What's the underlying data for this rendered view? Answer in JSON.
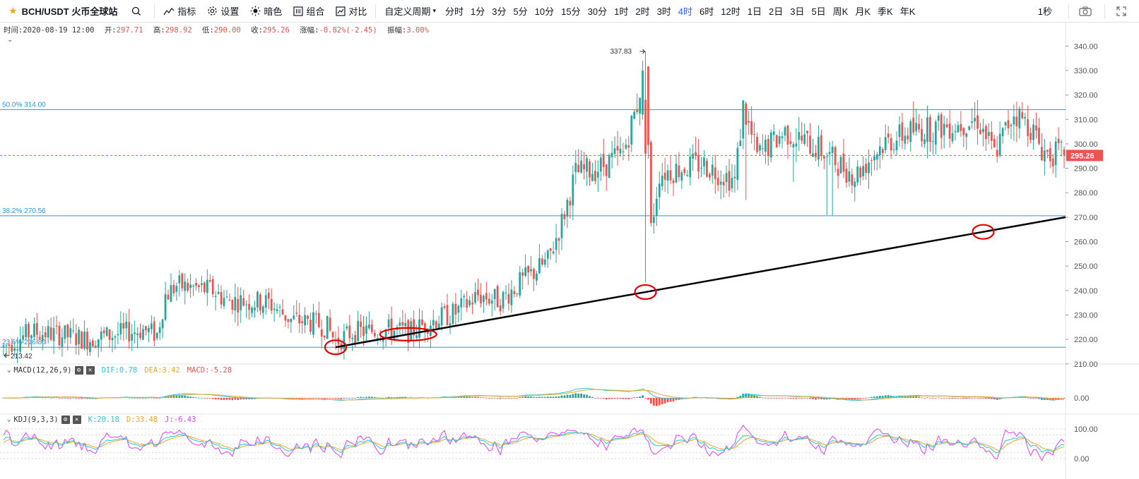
{
  "toolbar": {
    "symbol": "BCH/USDT 火币全球站",
    "buttons": [
      {
        "name": "indicators-button",
        "label": "指标"
      },
      {
        "name": "settings-button",
        "label": "设置"
      },
      {
        "name": "dark-mode-button",
        "label": "暗色"
      },
      {
        "name": "combine-button",
        "label": "组合"
      },
      {
        "name": "compare-button",
        "label": "对比"
      }
    ],
    "custom_period": "自定义周期",
    "intervals": [
      "分时",
      "1分",
      "3分",
      "5分",
      "10分",
      "15分",
      "30分",
      "1时",
      "2时",
      "3时",
      "4时",
      "6时",
      "12时",
      "1日",
      "2日",
      "3日",
      "5日",
      "周K",
      "月K",
      "季K",
      "年K"
    ],
    "active_interval": "4时",
    "seconds_label": "1秒"
  },
  "ohlc": {
    "time_label": "时间:",
    "time": "2020-08-19 12:00",
    "open_label": "开:",
    "open": "297.71",
    "high_label": "高:",
    "high": "298.92",
    "low_label": "低:",
    "low": "290.00",
    "close_label": "收:",
    "close": "295.26",
    "change_label": "涨幅:",
    "change": "-0.82%(-2.45)",
    "amplitude_label": "振幅:",
    "amplitude": "3.00%"
  },
  "macd": {
    "title": "MACD(12,26,9)",
    "dif_label": "DIF:",
    "dif": "0.78",
    "dea_label": "DEA:",
    "dea": "3.42",
    "macd_label": "MACD:",
    "macd": "-5.28"
  },
  "kdj": {
    "title": "KDJ(9,3,3)",
    "k_label": "K:",
    "k": "20.18",
    "d_label": "D:",
    "d": "33.48",
    "j_label": "J:",
    "j": "-6.43"
  },
  "colors": {
    "up": "#26a69a",
    "down": "#ef5350",
    "fib": "#2196f3",
    "trend": "#000000",
    "circle": "#e00000",
    "dif": "#26c6da",
    "dea": "#f5a623",
    "k": "#26c6da",
    "d": "#f5a623",
    "j": "#e040fb",
    "active": "#2962ff"
  },
  "chart_data": {
    "type": "candlestick",
    "price_axis": {
      "min": 205,
      "max": 345,
      "ticks": [
        210,
        220,
        230,
        240,
        250,
        260,
        270,
        280,
        290,
        300,
        310,
        320,
        330,
        340
      ],
      "tick_labels": [
        "210.00",
        "220.00",
        "230.00",
        "240.00",
        "250.00",
        "260.00",
        "270.00",
        "280.00",
        "290.00",
        "300.00",
        "310.00",
        "320.00",
        "330.00",
        "340.00"
      ]
    },
    "last_price": "295.26",
    "last_price_value": 295.26,
    "high_marker": "337.83",
    "high_value": 337.83,
    "low_marker": "213.42",
    "low_value": 213.42,
    "fib_levels": [
      {
        "label": "50.0% 314.00",
        "value": 314.0
      },
      {
        "label": "38.2% 270.56",
        "value": 270.56
      },
      {
        "label": "23.6% 216.80",
        "value": 216.8
      }
    ],
    "trendline": {
      "from_bar": 119,
      "from_price": 216.8,
      "to_bar": 380,
      "to_price": 270.0
    },
    "circled_bars": [
      119,
      145,
      230,
      351
    ],
    "anchors": [
      [
        0,
        217
      ],
      [
        10,
        223
      ],
      [
        20,
        222
      ],
      [
        30,
        220
      ],
      [
        40,
        222
      ],
      [
        50,
        224
      ],
      [
        55,
        222
      ],
      [
        58,
        238
      ],
      [
        62,
        242
      ],
      [
        75,
        240
      ],
      [
        80,
        236
      ],
      [
        95,
        235
      ],
      [
        103,
        228
      ],
      [
        110,
        227
      ],
      [
        116,
        225
      ],
      [
        119,
        219
      ],
      [
        125,
        223
      ],
      [
        138,
        224
      ],
      [
        146,
        223
      ],
      [
        152,
        227
      ],
      [
        162,
        231
      ],
      [
        170,
        238
      ],
      [
        178,
        236
      ],
      [
        185,
        243
      ],
      [
        195,
        252
      ],
      [
        200,
        268
      ],
      [
        205,
        288
      ],
      [
        213,
        290
      ],
      [
        222,
        296
      ],
      [
        227,
        316
      ],
      [
        230,
        335
      ],
      [
        232,
        265
      ],
      [
        235,
        288
      ],
      [
        250,
        292
      ],
      [
        262,
        285
      ],
      [
        265,
        315
      ],
      [
        270,
        295
      ],
      [
        280,
        305
      ],
      [
        292,
        298
      ],
      [
        305,
        287
      ],
      [
        315,
        300
      ],
      [
        325,
        305
      ],
      [
        342,
        308
      ],
      [
        349,
        310
      ],
      [
        355,
        296
      ],
      [
        362,
        313
      ],
      [
        368,
        307
      ],
      [
        372,
        298
      ],
      [
        374,
        296
      ]
    ],
    "macd_axis": {
      "ticks": [
        "0.00"
      ]
    },
    "kdj_axis": {
      "ticks": [
        "100.00",
        "0.00"
      ]
    }
  }
}
